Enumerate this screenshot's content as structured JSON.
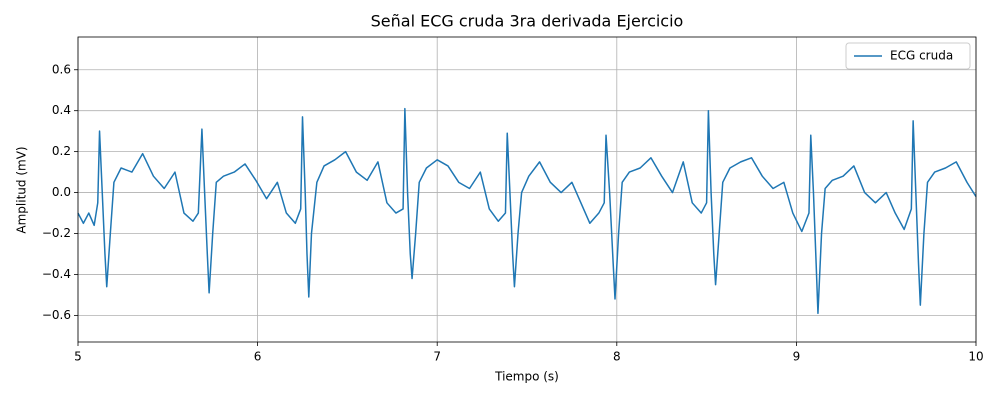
{
  "chart_data": {
    "type": "line",
    "title": "Señal ECG cruda 3ra derivada Ejercicio",
    "x_label": "Tiempo (s)",
    "y_label": "Amplitud (mV)",
    "xlim": [
      5,
      10
    ],
    "ylim": [
      -0.73,
      0.76
    ],
    "xticks": [
      5,
      6,
      7,
      8,
      9,
      10
    ],
    "yticks": [
      {
        "value": -0.6,
        "label": "−0.6"
      },
      {
        "value": -0.4,
        "label": "−0.4"
      },
      {
        "value": -0.2,
        "label": "−0.2"
      },
      {
        "value": 0,
        "label": "0.0"
      },
      0.2,
      0.4,
      0.6
    ],
    "grid": true,
    "legend": "upper right",
    "x": [
      5.0,
      5.03,
      5.06,
      5.09,
      5.11,
      5.12,
      5.135,
      5.15,
      5.16,
      5.18,
      5.2,
      5.24,
      5.3,
      5.36,
      5.42,
      5.48,
      5.54,
      5.59,
      5.64,
      5.67,
      5.69,
      5.705,
      5.72,
      5.73,
      5.75,
      5.77,
      5.81,
      5.87,
      5.93,
      5.99,
      6.05,
      6.11,
      6.16,
      6.21,
      6.24,
      6.25,
      6.265,
      6.275,
      6.285,
      6.3,
      6.33,
      6.37,
      6.43,
      6.49,
      6.55,
      6.61,
      6.67,
      6.72,
      6.77,
      6.81,
      6.82,
      6.835,
      6.85,
      6.86,
      6.88,
      6.9,
      6.94,
      7.0,
      7.06,
      7.12,
      7.18,
      7.24,
      7.29,
      7.34,
      7.38,
      7.39,
      7.405,
      7.42,
      7.43,
      7.45,
      7.47,
      7.51,
      7.57,
      7.63,
      7.69,
      7.75,
      7.8,
      7.85,
      7.9,
      7.93,
      7.94,
      7.96,
      7.98,
      7.99,
      8.01,
      8.03,
      8.07,
      8.13,
      8.19,
      8.25,
      8.31,
      8.37,
      8.42,
      8.47,
      8.5,
      8.51,
      8.525,
      8.54,
      8.55,
      8.57,
      8.59,
      8.63,
      8.69,
      8.75,
      8.81,
      8.87,
      8.93,
      8.98,
      9.03,
      9.07,
      9.08,
      9.095,
      9.11,
      9.12,
      9.14,
      9.16,
      9.2,
      9.26,
      9.32,
      9.38,
      9.44,
      9.5,
      9.55,
      9.6,
      9.64,
      9.65,
      9.665,
      9.68,
      9.69,
      9.71,
      9.73,
      9.77,
      9.83,
      9.89,
      9.95,
      10.0
    ],
    "series": [
      {
        "name": "ECG cruda",
        "color": "#1f77b4",
        "values": [
          -0.1,
          -0.15,
          -0.1,
          -0.16,
          -0.05,
          0.3,
          0.0,
          -0.3,
          -0.46,
          -0.2,
          0.05,
          0.12,
          0.1,
          0.19,
          0.08,
          0.02,
          0.1,
          -0.1,
          -0.14,
          -0.1,
          0.31,
          0.0,
          -0.3,
          -0.49,
          -0.2,
          0.05,
          0.08,
          0.1,
          0.14,
          0.06,
          -0.03,
          0.05,
          -0.1,
          -0.15,
          -0.08,
          0.37,
          0.0,
          -0.3,
          -0.51,
          -0.2,
          0.05,
          0.13,
          0.16,
          0.2,
          0.1,
          0.06,
          0.15,
          -0.05,
          -0.1,
          -0.08,
          0.41,
          0.0,
          -0.3,
          -0.42,
          -0.2,
          0.05,
          0.12,
          0.16,
          0.13,
          0.05,
          0.02,
          0.1,
          -0.08,
          -0.14,
          -0.1,
          0.29,
          0.0,
          -0.3,
          -0.46,
          -0.2,
          0.0,
          0.08,
          0.15,
          0.05,
          0.0,
          0.05,
          -0.05,
          -0.15,
          -0.1,
          -0.05,
          0.28,
          0.0,
          -0.35,
          -0.52,
          -0.2,
          0.05,
          0.1,
          0.12,
          0.17,
          0.08,
          0.0,
          0.15,
          -0.05,
          -0.1,
          -0.05,
          0.4,
          0.0,
          -0.3,
          -0.45,
          -0.2,
          0.05,
          0.12,
          0.15,
          0.17,
          0.08,
          0.02,
          0.05,
          -0.1,
          -0.19,
          -0.1,
          0.28,
          0.0,
          -0.35,
          -0.59,
          -0.2,
          0.02,
          0.06,
          0.08,
          0.13,
          0.0,
          -0.05,
          0.0,
          -0.1,
          -0.18,
          -0.08,
          0.35,
          0.0,
          -0.35,
          -0.55,
          -0.2,
          0.05,
          0.1,
          0.12,
          0.15,
          0.05,
          -0.02
        ]
      }
    ]
  }
}
